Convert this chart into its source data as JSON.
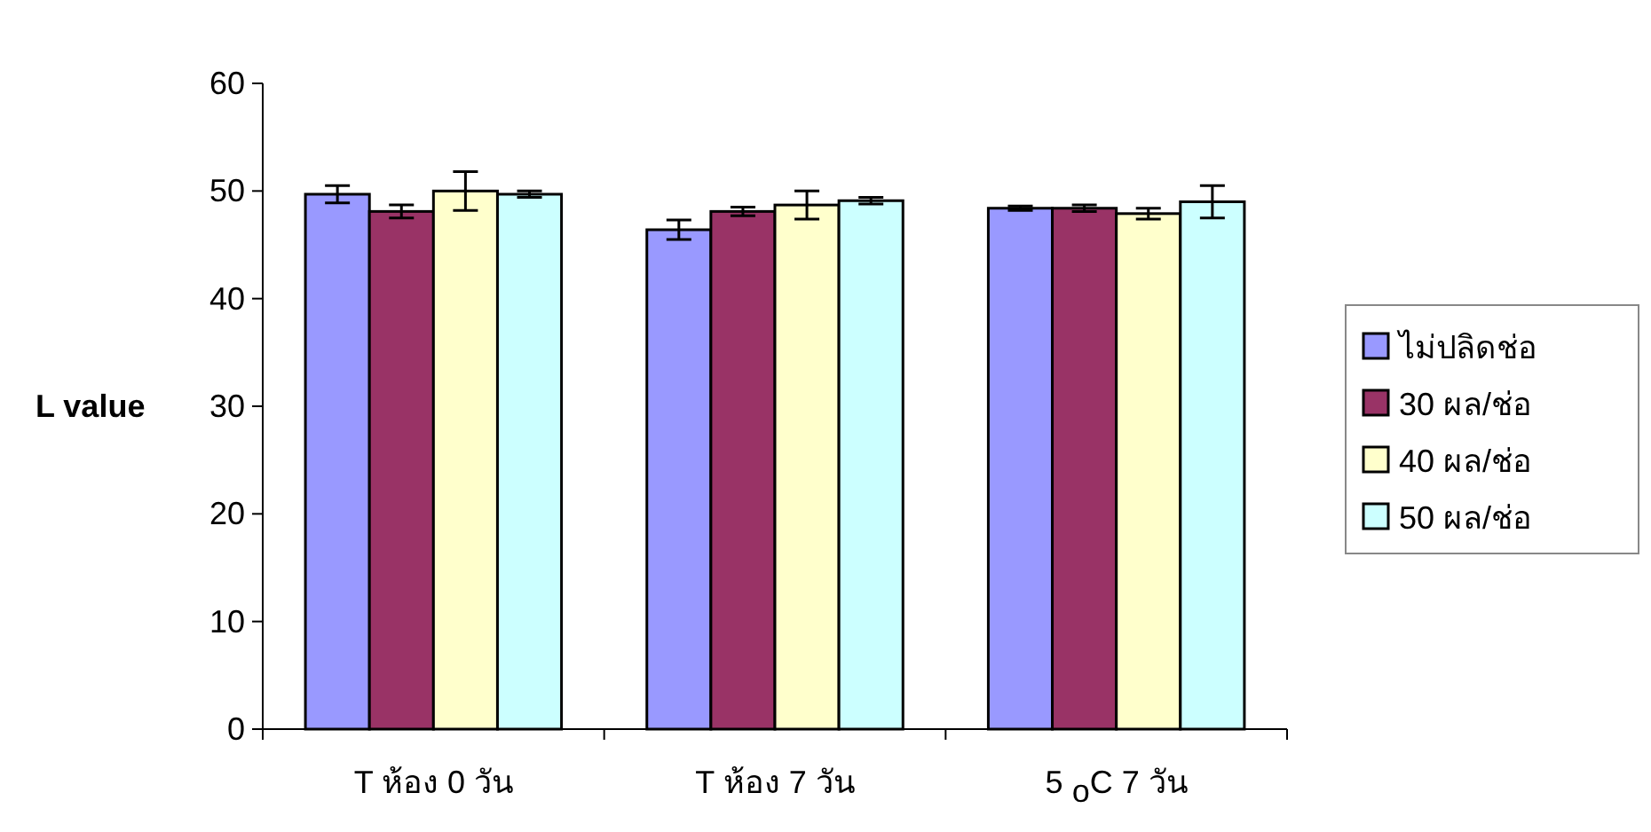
{
  "chart_data": {
    "type": "bar",
    "ylabel": "L value",
    "categories": [
      "T ห้อง 0 วัน",
      "T ห้อง 7 วัน",
      "5 $_{o}$C 7 วัน"
    ],
    "series": [
      {
        "name": "ไม่ปลิดช่อ",
        "color": "#9999ff",
        "values": [
          49.7,
          46.4,
          48.4
        ],
        "errors": [
          0.8,
          0.9,
          0.2
        ]
      },
      {
        "name": "30 ผล/ช่อ",
        "color": "#993366",
        "values": [
          48.1,
          48.1,
          48.4
        ],
        "errors": [
          0.6,
          0.4,
          0.3
        ]
      },
      {
        "name": "40 ผล/ช่อ",
        "color": "#ffffcc",
        "values": [
          50.0,
          48.7,
          47.9
        ],
        "errors": [
          1.8,
          1.3,
          0.5
        ]
      },
      {
        "name": "50 ผล/ช่อ",
        "color": "#ccffff",
        "values": [
          49.7,
          49.1,
          49.0
        ],
        "errors": [
          0.3,
          0.3,
          1.5
        ]
      }
    ],
    "ylim": [
      0,
      60
    ],
    "yticks": [
      0,
      10,
      20,
      30,
      40,
      50,
      60
    ],
    "legend": "right"
  }
}
